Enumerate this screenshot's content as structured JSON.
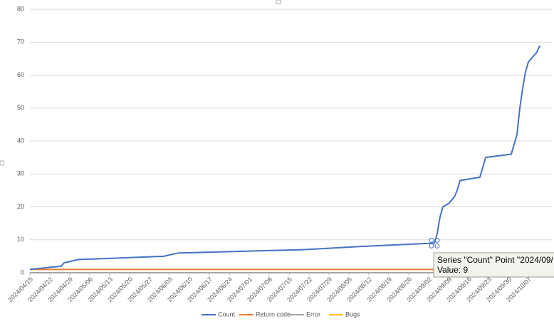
{
  "chart_data": {
    "type": "line",
    "x": [
      "2024/04/15",
      "2024/04/26",
      "2024/04/27",
      "2024/05/02",
      "2024/06/01",
      "2024/06/06",
      "2024/07/20",
      "2024/08/10",
      "2024/09/04",
      "2024/09/05",
      "2024/09/06",
      "2024/09/07",
      "2024/09/09",
      "2024/09/11",
      "2024/09/12",
      "2024/09/13",
      "2024/09/20",
      "2024/09/21",
      "2024/09/22",
      "2024/10/01",
      "2024/10/02",
      "2024/10/03",
      "2024/10/04",
      "2024/10/05",
      "2024/10/06",
      "2024/10/07",
      "2024/10/10",
      "2024/10/11"
    ],
    "series": [
      {
        "name": "Count",
        "color": "#4472c4",
        "values": [
          1,
          2,
          3,
          4,
          5,
          6,
          7,
          8,
          9,
          12,
          17,
          20,
          21,
          23,
          25,
          28,
          29,
          32,
          35,
          36,
          39,
          42,
          50,
          56,
          61,
          64,
          67,
          69
        ]
      },
      {
        "name": "Return code",
        "color": "#ed7d31",
        "values": [
          1,
          1,
          1,
          1,
          1,
          1,
          1,
          1,
          1,
          1,
          1,
          1,
          1,
          1,
          1,
          1,
          1,
          1,
          1,
          1,
          1,
          1,
          1,
          1,
          1,
          1,
          1,
          1
        ]
      },
      {
        "name": "Error",
        "color": "#a5a5a5",
        "values": [
          0,
          0,
          0,
          0,
          0,
          0,
          0,
          0,
          0,
          0,
          0,
          0,
          0,
          0,
          0,
          0,
          0,
          0,
          0,
          0,
          0,
          0,
          0,
          0,
          0,
          0,
          0,
          0
        ]
      },
      {
        "name": "Bugs",
        "color": "#ffc000",
        "values": [
          0,
          0,
          0,
          0,
          0,
          0,
          0,
          0,
          0,
          0,
          0,
          0,
          0,
          0,
          0,
          0,
          0,
          0,
          0,
          0,
          0,
          0,
          0,
          0,
          0,
          0,
          0,
          0
        ]
      }
    ],
    "xlim": [
      "2024/04/15",
      "2024/10/12"
    ],
    "xticks": [
      "2024/04/15",
      "2024/04/22",
      "2024/04/29",
      "2024/05/06",
      "2024/05/13",
      "2024/05/20",
      "2024/05/27",
      "2024/06/03",
      "2024/06/10",
      "2024/06/17",
      "2024/06/24",
      "2024/07/01",
      "2024/07/08",
      "2024/07/15",
      "2024/07/22",
      "2024/07/29",
      "2024/08/05",
      "2024/08/12",
      "2024/08/19",
      "2024/08/26",
      "2024/09/02",
      "2024/09/09",
      "2024/09/16",
      "2024/09/23",
      "2024/09/30",
      "2024/10/07"
    ],
    "ylim": [
      0,
      80
    ],
    "yticks": [
      0,
      10,
      20,
      30,
      40,
      50,
      60,
      70,
      80
    ],
    "grid": true,
    "legend": "bottom",
    "tooltip": {
      "series_point": "Series \"Count\" Point \"2024/09/",
      "value": "Value: 9"
    }
  }
}
